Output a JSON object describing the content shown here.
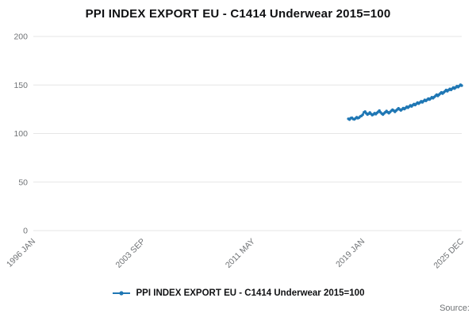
{
  "title": "PPI INDEX EXPORT EU - C1414 Underwear 2015=100",
  "source_label": "Source:",
  "legend": {
    "label": "PPI INDEX EXPORT EU - C1414 Underwear 2015=100"
  },
  "colors": {
    "accent": "#1f77b4",
    "grid": "#e6e6e6",
    "axis_text": "#6f7275",
    "title_text": "#101113"
  },
  "chart_data": {
    "type": "line",
    "title": "PPI INDEX EXPORT EU - C1414 Underwear 2015=100",
    "xlabel": "",
    "ylabel": "",
    "ylim": [
      0,
      200
    ],
    "yticks": [
      0,
      50,
      100,
      150,
      200
    ],
    "grid": true,
    "legend_position": "bottom",
    "x_axis": {
      "total_months": 360,
      "ticks": [
        {
          "label": "1996 JAN",
          "month": 0
        },
        {
          "label": "2003 SEP",
          "month": 92
        },
        {
          "label": "2011 MAY",
          "month": 184
        },
        {
          "label": "2019 JAN",
          "month": 276
        },
        {
          "label": "2025 DEC",
          "month": 359
        }
      ]
    },
    "series": [
      {
        "name": "PPI INDEX EXPORT EU - C1414 Underwear 2015=100",
        "start_date": "2018 JAN",
        "start_month": 264,
        "values": [
          115.2,
          114.4,
          115.8,
          116.2,
          115.0,
          114.6,
          115.6,
          116.8,
          115.8,
          116.4,
          117.6,
          118.2,
          119.4,
          121.8,
          122.6,
          120.8,
          119.6,
          120.4,
          121.6,
          120.2,
          119.0,
          119.8,
          121.0,
          120.0,
          121.2,
          122.4,
          123.6,
          121.8,
          120.6,
          119.6,
          120.8,
          122.0,
          123.2,
          122.0,
          121.0,
          122.2,
          123.4,
          124.6,
          123.6,
          122.4,
          123.6,
          124.8,
          126.0,
          124.8,
          123.8,
          125.0,
          126.2,
          125.2,
          126.4,
          127.6,
          126.6,
          127.8,
          129.0,
          128.0,
          129.2,
          130.4,
          129.4,
          130.6,
          131.8,
          130.8,
          132.0,
          133.2,
          132.2,
          133.4,
          134.6,
          133.6,
          134.8,
          136.0,
          135.0,
          136.2,
          137.4,
          136.4,
          137.6,
          138.8,
          140.0,
          138.8,
          140.0,
          141.2,
          142.4,
          141.2,
          142.4,
          143.6,
          144.8,
          143.6,
          144.8,
          146.0,
          145.0,
          146.2,
          147.4,
          146.4,
          147.6,
          148.8,
          147.8,
          149.0,
          150.2,
          149.4
        ]
      }
    ]
  }
}
